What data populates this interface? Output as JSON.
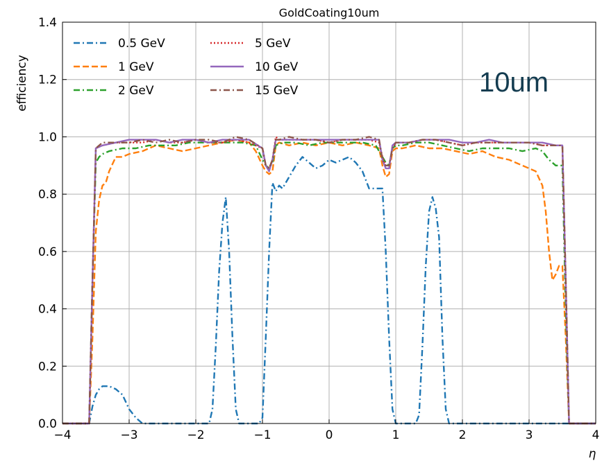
{
  "chart_data": {
    "type": "line",
    "title": "GoldCoating10um",
    "xlabel": "η",
    "ylabel": "efficiency",
    "xlim": [
      -4,
      4
    ],
    "ylim": [
      0,
      1.4
    ],
    "xticks": [
      -4,
      -3,
      -2,
      -1,
      0,
      1,
      2,
      3,
      4
    ],
    "xtick_labels": [
      "−4",
      "−3",
      "−2",
      "−1",
      "0",
      "1",
      "2",
      "3",
      "4"
    ],
    "yticks": [
      0,
      0.2,
      0.4,
      0.6,
      0.8,
      1.0,
      1.2,
      1.4
    ],
    "ytick_labels": [
      "0.0",
      "0.2",
      "0.4",
      "0.6",
      "0.8",
      "1.0",
      "1.2",
      "1.4"
    ],
    "grid": true,
    "legend_position": "top-left",
    "legend_columns": 2,
    "annotation": "10um",
    "series": [
      {
        "name": "0.5 GeV",
        "color": "#1f77b4",
        "dash": "dashdot",
        "x": [
          -4.0,
          -3.6,
          -3.55,
          -3.5,
          -3.45,
          -3.4,
          -3.3,
          -3.2,
          -3.1,
          -3.0,
          -2.9,
          -2.8,
          -2.0,
          -1.8,
          -1.75,
          -1.7,
          -1.65,
          -1.6,
          -1.55,
          -1.5,
          -1.45,
          -1.4,
          -1.35,
          -1.3,
          -1.05,
          -1.0,
          -0.95,
          -0.9,
          -0.85,
          -0.8,
          -0.75,
          -0.7,
          -0.6,
          -0.5,
          -0.4,
          -0.3,
          -0.2,
          -0.1,
          0.0,
          0.1,
          0.2,
          0.3,
          0.4,
          0.5,
          0.6,
          0.7,
          0.8,
          0.85,
          0.9,
          0.95,
          1.0,
          1.05,
          1.3,
          1.35,
          1.4,
          1.45,
          1.5,
          1.55,
          1.6,
          1.65,
          1.7,
          1.75,
          1.8,
          2.0,
          3.0,
          3.5,
          3.55,
          4.0
        ],
        "y": [
          0.0,
          0.0,
          0.06,
          0.1,
          0.12,
          0.13,
          0.13,
          0.12,
          0.1,
          0.05,
          0.02,
          0.0,
          0.0,
          0.0,
          0.05,
          0.27,
          0.53,
          0.7,
          0.79,
          0.6,
          0.3,
          0.05,
          0.0,
          0.0,
          0.0,
          0.02,
          0.3,
          0.6,
          0.84,
          0.81,
          0.83,
          0.82,
          0.86,
          0.9,
          0.93,
          0.91,
          0.89,
          0.9,
          0.92,
          0.91,
          0.92,
          0.93,
          0.91,
          0.88,
          0.82,
          0.82,
          0.82,
          0.6,
          0.3,
          0.05,
          0.0,
          0.0,
          0.0,
          0.03,
          0.27,
          0.55,
          0.74,
          0.79,
          0.75,
          0.65,
          0.3,
          0.05,
          0.0,
          0.0,
          0.0,
          0.0,
          0.0,
          0.0
        ]
      },
      {
        "name": "1 GeV",
        "color": "#ff7f0e",
        "dash": "dashed",
        "x": [
          -4.0,
          -3.6,
          -3.55,
          -3.5,
          -3.45,
          -3.4,
          -3.35,
          -3.3,
          -3.2,
          -3.1,
          -3.0,
          -2.8,
          -2.6,
          -2.4,
          -2.2,
          -2.0,
          -1.8,
          -1.6,
          -1.4,
          -1.2,
          -1.1,
          -1.0,
          -0.95,
          -0.9,
          -0.85,
          -0.8,
          -0.75,
          -0.6,
          -0.4,
          -0.2,
          0.0,
          0.2,
          0.4,
          0.6,
          0.75,
          0.8,
          0.85,
          0.9,
          0.95,
          1.0,
          1.1,
          1.3,
          1.5,
          1.7,
          1.9,
          2.1,
          2.3,
          2.5,
          2.7,
          2.9,
          3.1,
          3.2,
          3.25,
          3.3,
          3.35,
          3.4,
          3.45,
          3.5,
          3.55,
          3.6,
          4.0
        ],
        "y": [
          0.0,
          0.0,
          0.3,
          0.67,
          0.78,
          0.83,
          0.84,
          0.88,
          0.93,
          0.93,
          0.94,
          0.95,
          0.97,
          0.96,
          0.95,
          0.96,
          0.97,
          0.98,
          0.99,
          0.98,
          0.95,
          0.9,
          0.88,
          0.87,
          0.88,
          0.97,
          0.98,
          0.97,
          0.98,
          0.97,
          0.98,
          0.97,
          0.98,
          0.97,
          0.96,
          0.9,
          0.86,
          0.87,
          0.95,
          0.96,
          0.96,
          0.97,
          0.96,
          0.96,
          0.95,
          0.94,
          0.95,
          0.93,
          0.92,
          0.9,
          0.88,
          0.83,
          0.74,
          0.6,
          0.5,
          0.52,
          0.55,
          0.55,
          0.3,
          0.0,
          0.0
        ]
      },
      {
        "name": "2 GeV",
        "color": "#2ca02c",
        "dash": "dashdot",
        "x": [
          -4.0,
          -3.6,
          -3.55,
          -3.5,
          -3.45,
          -3.4,
          -3.3,
          -3.1,
          -2.9,
          -2.7,
          -2.5,
          -2.3,
          -2.1,
          -1.9,
          -1.7,
          -1.5,
          -1.3,
          -1.1,
          -1.0,
          -0.95,
          -0.9,
          -0.85,
          -0.8,
          -0.7,
          -0.5,
          -0.3,
          -0.1,
          0.1,
          0.3,
          0.5,
          0.7,
          0.8,
          0.85,
          0.9,
          0.95,
          1.0,
          1.1,
          1.3,
          1.5,
          1.7,
          1.9,
          2.1,
          2.3,
          2.5,
          2.7,
          2.9,
          3.1,
          3.2,
          3.3,
          3.4,
          3.5,
          3.55,
          3.6,
          4.0
        ],
        "y": [
          0.0,
          0.0,
          0.5,
          0.91,
          0.93,
          0.94,
          0.95,
          0.96,
          0.96,
          0.97,
          0.97,
          0.97,
          0.98,
          0.98,
          0.98,
          0.98,
          0.98,
          0.97,
          0.92,
          0.9,
          0.89,
          0.91,
          0.97,
          0.98,
          0.98,
          0.97,
          0.98,
          0.98,
          0.98,
          0.98,
          0.97,
          0.93,
          0.91,
          0.9,
          0.96,
          0.97,
          0.97,
          0.98,
          0.98,
          0.97,
          0.96,
          0.95,
          0.96,
          0.96,
          0.96,
          0.95,
          0.96,
          0.95,
          0.92,
          0.9,
          0.9,
          0.4,
          0.0,
          0.0
        ]
      },
      {
        "name": "5 GeV",
        "color": "#d62728",
        "dash": "dotted",
        "x": [
          -4.0,
          -3.6,
          -3.55,
          -3.5,
          -3.4,
          -3.2,
          -3.0,
          -2.8,
          -2.6,
          -2.4,
          -2.2,
          -2.0,
          -1.8,
          -1.6,
          -1.4,
          -1.2,
          -1.0,
          -0.95,
          -0.9,
          -0.85,
          -0.8,
          -0.75,
          -0.6,
          -0.4,
          -0.2,
          0.0,
          0.2,
          0.4,
          0.6,
          0.75,
          0.8,
          0.85,
          0.9,
          0.95,
          1.0,
          1.2,
          1.4,
          1.6,
          1.8,
          2.0,
          2.2,
          2.4,
          2.6,
          2.8,
          3.0,
          3.2,
          3.4,
          3.5,
          3.55,
          3.6,
          4.0
        ],
        "y": [
          0.0,
          0.0,
          0.5,
          0.96,
          0.97,
          0.98,
          0.98,
          0.98,
          0.99,
          0.98,
          0.98,
          0.99,
          0.98,
          0.98,
          0.99,
          0.98,
          0.96,
          0.9,
          0.89,
          0.92,
          1.0,
          0.99,
          0.99,
          0.99,
          0.99,
          0.98,
          0.99,
          0.99,
          0.99,
          0.98,
          0.93,
          0.9,
          0.9,
          0.96,
          0.98,
          0.98,
          0.99,
          0.99,
          0.98,
          0.97,
          0.98,
          0.98,
          0.98,
          0.98,
          0.98,
          0.97,
          0.97,
          0.97,
          0.5,
          0.0,
          0.0
        ]
      },
      {
        "name": "10 GeV",
        "color": "#9467bd",
        "dash": "solid",
        "x": [
          -4.0,
          -3.6,
          -3.55,
          -3.5,
          -3.4,
          -3.2,
          -3.0,
          -2.8,
          -2.6,
          -2.4,
          -2.2,
          -2.0,
          -1.8,
          -1.6,
          -1.4,
          -1.2,
          -1.0,
          -0.95,
          -0.9,
          -0.85,
          -0.8,
          -0.75,
          -0.6,
          -0.4,
          -0.2,
          0.0,
          0.2,
          0.4,
          0.6,
          0.75,
          0.8,
          0.85,
          0.9,
          0.95,
          1.0,
          1.2,
          1.4,
          1.6,
          1.8,
          2.0,
          2.2,
          2.4,
          2.6,
          2.8,
          3.0,
          3.2,
          3.4,
          3.5,
          3.55,
          3.6,
          4.0
        ],
        "y": [
          0.0,
          0.0,
          0.5,
          0.96,
          0.97,
          0.98,
          0.99,
          0.99,
          0.99,
          0.98,
          0.99,
          0.99,
          0.98,
          0.99,
          0.99,
          0.99,
          0.96,
          0.9,
          0.88,
          0.92,
          0.99,
          0.99,
          0.99,
          0.99,
          0.99,
          0.99,
          0.99,
          0.99,
          0.99,
          0.99,
          0.92,
          0.89,
          0.89,
          0.97,
          0.98,
          0.98,
          0.99,
          0.99,
          0.99,
          0.98,
          0.98,
          0.99,
          0.98,
          0.98,
          0.98,
          0.98,
          0.97,
          0.97,
          0.5,
          0.0,
          0.0
        ]
      },
      {
        "name": "15 GeV",
        "color": "#8c564b",
        "dash": "dashdot",
        "x": [
          -4.0,
          -3.6,
          -3.55,
          -3.5,
          -3.4,
          -3.2,
          -3.0,
          -2.8,
          -2.6,
          -2.4,
          -2.2,
          -2.0,
          -1.8,
          -1.6,
          -1.4,
          -1.2,
          -1.0,
          -0.95,
          -0.9,
          -0.85,
          -0.8,
          -0.75,
          -0.6,
          -0.4,
          -0.2,
          0.0,
          0.2,
          0.4,
          0.6,
          0.75,
          0.8,
          0.85,
          0.9,
          0.95,
          1.0,
          1.2,
          1.4,
          1.6,
          1.8,
          2.0,
          2.2,
          2.4,
          2.6,
          2.8,
          3.0,
          3.2,
          3.4,
          3.5,
          3.55,
          3.6,
          4.0
        ],
        "y": [
          0.0,
          0.0,
          0.5,
          0.96,
          0.98,
          0.98,
          0.98,
          0.99,
          0.98,
          0.99,
          0.98,
          0.99,
          0.99,
          0.98,
          1.0,
          0.99,
          0.96,
          0.9,
          0.89,
          0.92,
          0.99,
          0.99,
          1.0,
          0.99,
          0.99,
          0.98,
          0.99,
          0.99,
          1.0,
          0.99,
          0.92,
          0.9,
          0.9,
          0.96,
          0.98,
          0.98,
          0.99,
          0.99,
          0.98,
          0.97,
          0.98,
          0.98,
          0.98,
          0.98,
          0.98,
          0.97,
          0.97,
          0.97,
          0.5,
          0.0,
          0.0
        ]
      }
    ]
  }
}
